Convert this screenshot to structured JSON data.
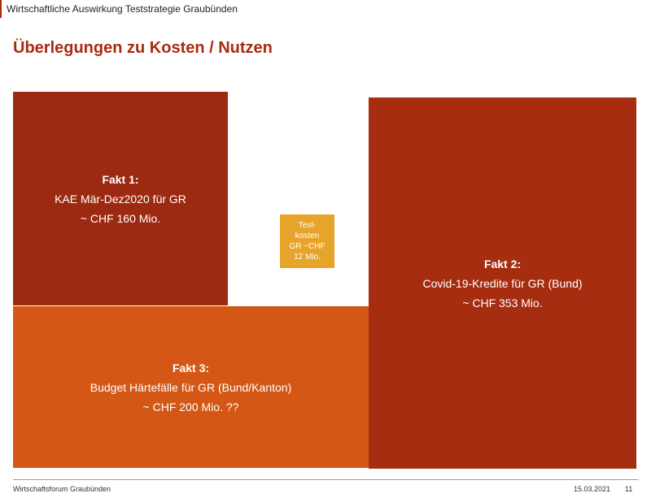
{
  "header": {
    "text": "Wirtschaftliche Auswirkung Teststrategie Graubünden"
  },
  "title": "Überlegungen zu Kosten / Nutzen",
  "boxes": {
    "fakt1": {
      "head": "Fakt 1:",
      "line1": "KAE Mär-Dez2020 für GR",
      "line2": "~ CHF 160 Mio."
    },
    "fakt2": {
      "head": "Fakt 2:",
      "line1": "Covid-19-Kredite für GR (Bund)",
      "line2": "~ CHF 353 Mio."
    },
    "fakt3": {
      "head": "Fakt 3:",
      "line1": "Budget Härtefälle für GR (Bund/Kanton)",
      "line2": "~ CHF 200 Mio. ??"
    },
    "testkosten": {
      "line1": "Test-",
      "line2": "kosten",
      "line3": "GR ~CHF",
      "line4": "12 Mio."
    }
  },
  "footer": {
    "organization": "Wirtschaftsforum Graubünden",
    "date": "15.03.2021",
    "page": "11"
  },
  "colors": {
    "title": "#a82b10",
    "fakt1": "#9c2a10",
    "fakt2": "#a62d10",
    "fakt3": "#d45716",
    "testkosten": "#e7a42a"
  }
}
